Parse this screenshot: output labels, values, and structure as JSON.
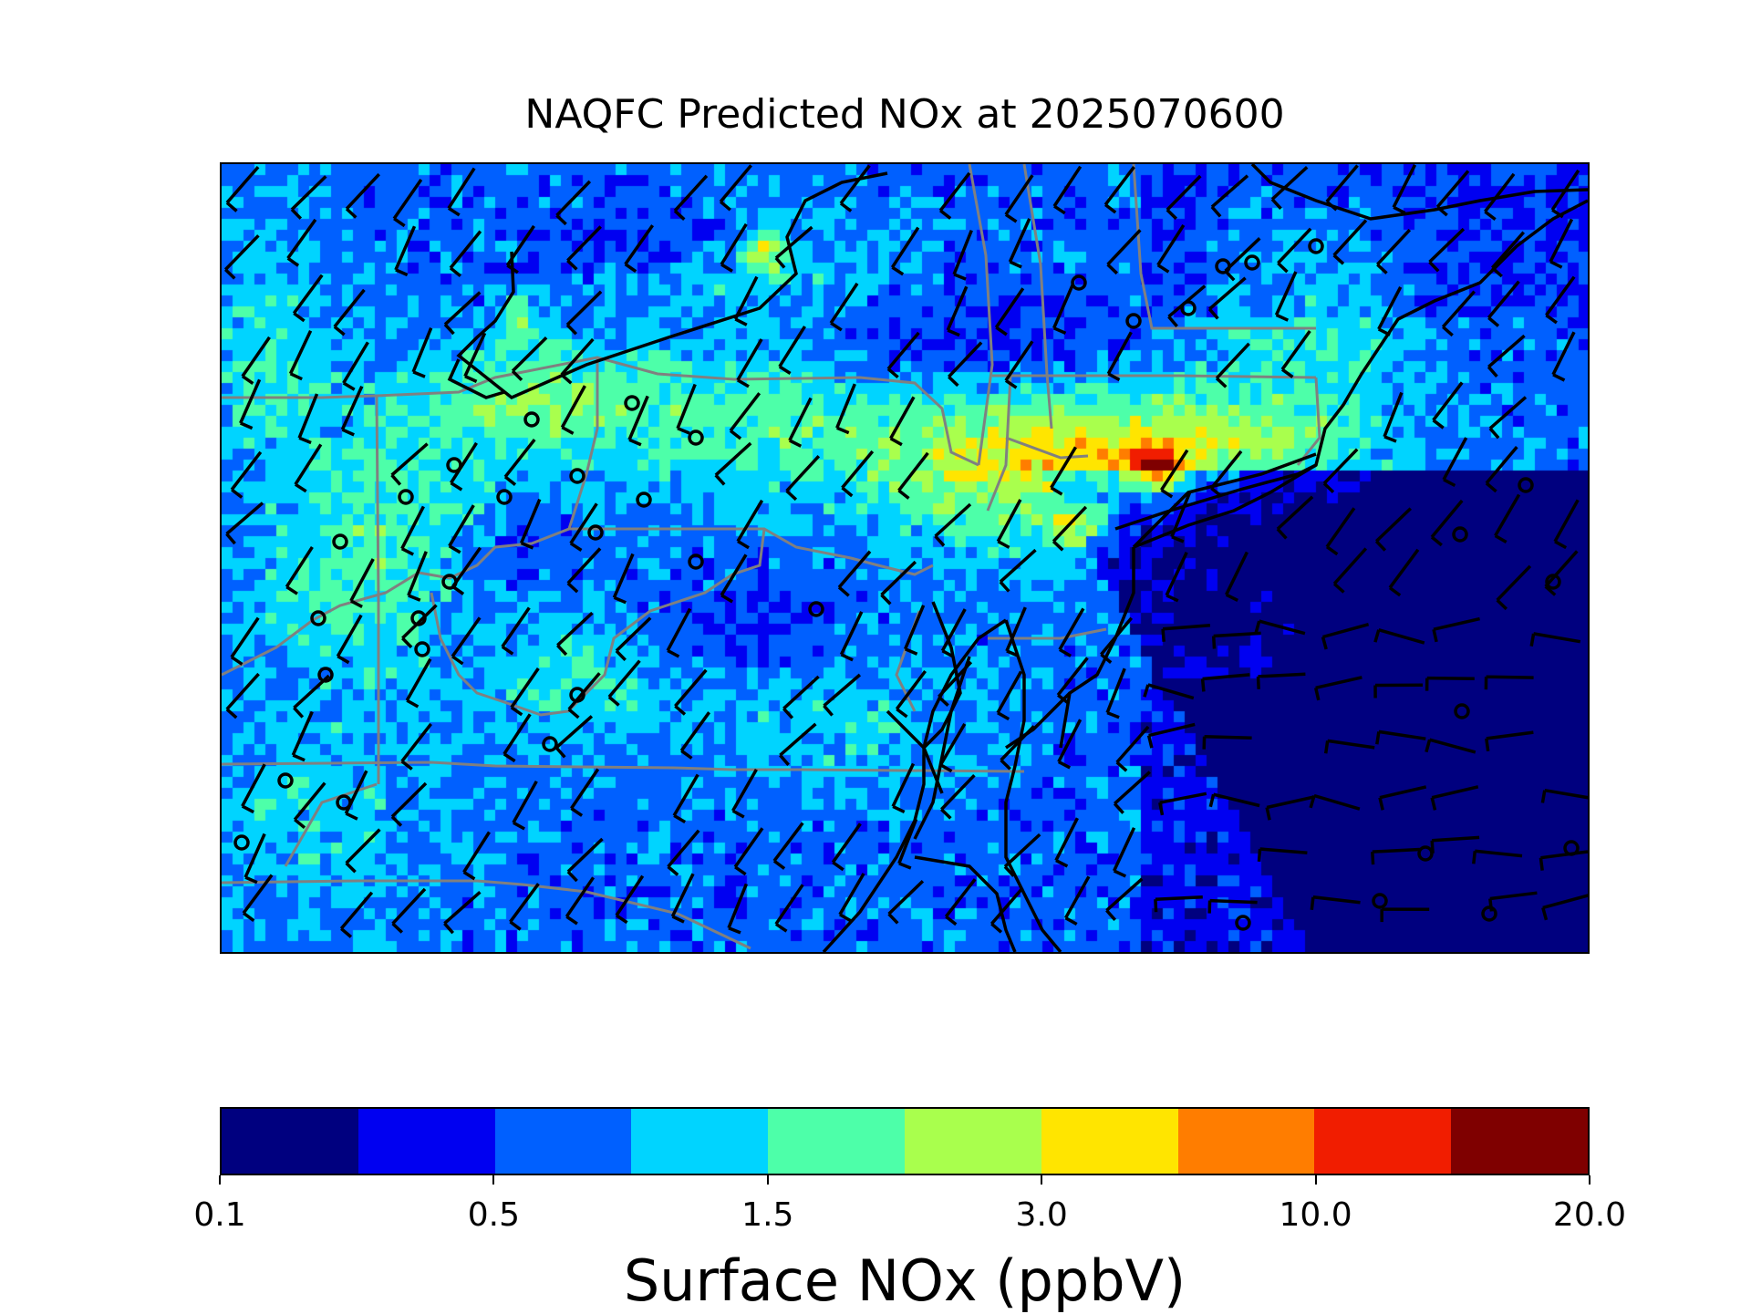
{
  "title": "NAQFC Predicted NOx at 2025070600",
  "colorbar": {
    "label": "Surface NOx (ppbV)",
    "tick_labels": [
      "0.1",
      "0.5",
      "1.5",
      "3.0",
      "10.0",
      "20.0"
    ],
    "colors": [
      "#00007f",
      "#0000f1",
      "#0060ff",
      "#00d4ff",
      "#4dffa9",
      "#a9ff4d",
      "#ffe500",
      "#ff7d00",
      "#f11d00",
      "#7f0000"
    ]
  },
  "map": {
    "region": "Northeastern United States and Mid-Atlantic coast",
    "layers": [
      "NOx concentration field",
      "state boundaries",
      "coastlines",
      "wind barbs",
      "calm wind circles"
    ]
  }
}
